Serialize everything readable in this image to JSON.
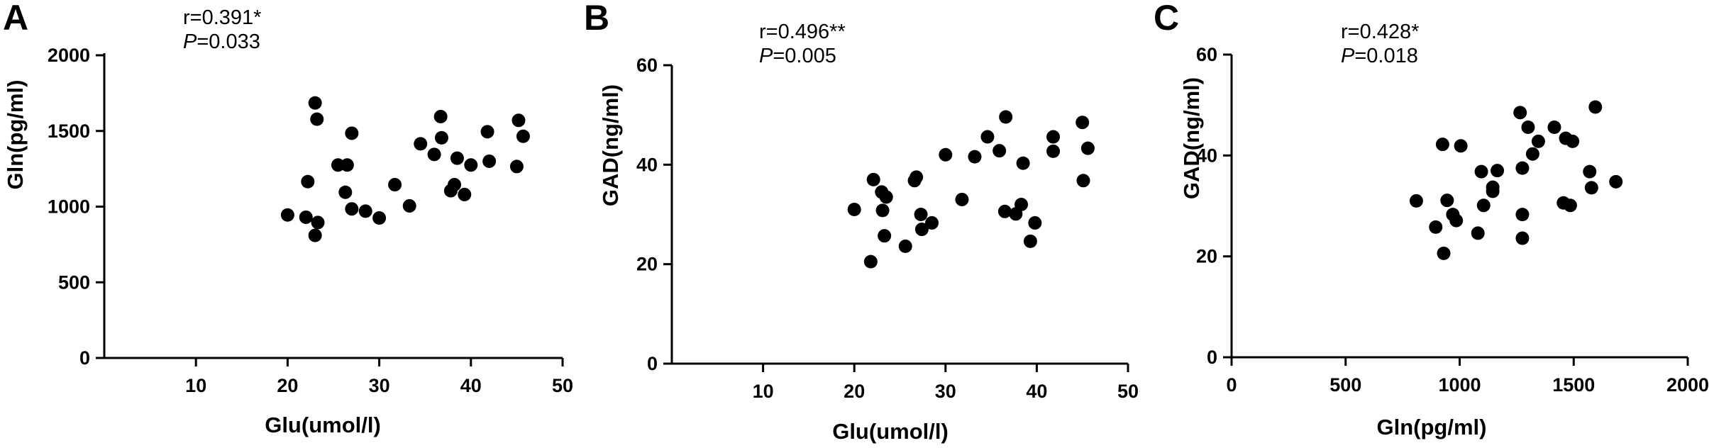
{
  "chart_data": [
    {
      "panel": "A",
      "type": "scatter",
      "annotation": {
        "r": "r=0.391*",
        "p_symbol": "P",
        "p_value": "=0.033"
      },
      "xlabel": "Glu(umol/l)",
      "ylabel": "Gln(pg/ml)",
      "xlim": [
        0,
        50
      ],
      "ylim": [
        0,
        2000
      ],
      "xticks": [
        10,
        20,
        30,
        40,
        50
      ],
      "yticks": [
        0,
        500,
        1000,
        1500,
        2000
      ],
      "marker_color": "#000000",
      "points": [
        [
          20,
          945
        ],
        [
          22,
          930
        ],
        [
          22.2,
          1165
        ],
        [
          23,
          810
        ],
        [
          23,
          1685
        ],
        [
          23.2,
          1578
        ],
        [
          23.3,
          895
        ],
        [
          25.5,
          1275
        ],
        [
          26.3,
          1095
        ],
        [
          26.5,
          1275
        ],
        [
          27,
          985
        ],
        [
          27,
          1485
        ],
        [
          28.5,
          970
        ],
        [
          30,
          925
        ],
        [
          31.7,
          1145
        ],
        [
          33.3,
          1005
        ],
        [
          34.5,
          1415
        ],
        [
          36,
          1345
        ],
        [
          36.7,
          1595
        ],
        [
          36.8,
          1455
        ],
        [
          37.8,
          1105
        ],
        [
          38.2,
          1145
        ],
        [
          38.5,
          1320
        ],
        [
          39.3,
          1080
        ],
        [
          40,
          1275
        ],
        [
          41.8,
          1495
        ],
        [
          42,
          1300
        ],
        [
          45,
          1265
        ],
        [
          45.2,
          1570
        ],
        [
          45.7,
          1465
        ]
      ]
    },
    {
      "panel": "B",
      "type": "scatter",
      "annotation": {
        "r": "r=0.496**",
        "p_symbol": "P",
        "p_value": "=0.005"
      },
      "xlabel": "Glu(umol/l)",
      "ylabel": "GAD(ng/ml)",
      "xlim": [
        0,
        50
      ],
      "ylim": [
        0,
        60
      ],
      "xticks": [
        10,
        20,
        30,
        40,
        50
      ],
      "yticks": [
        0,
        20,
        40,
        60
      ],
      "marker_color": "#000000",
      "points": [
        [
          20,
          31
        ],
        [
          21.8,
          20.5
        ],
        [
          22.1,
          37
        ],
        [
          23,
          34.5
        ],
        [
          23.1,
          30.8
        ],
        [
          23.3,
          25.7
        ],
        [
          23.5,
          33.5
        ],
        [
          25.6,
          23.6
        ],
        [
          26.6,
          36.8
        ],
        [
          26.8,
          37.5
        ],
        [
          27.3,
          30
        ],
        [
          27.4,
          27
        ],
        [
          28.5,
          28.3
        ],
        [
          30,
          42
        ],
        [
          31.8,
          33
        ],
        [
          33.2,
          41.6
        ],
        [
          34.6,
          45.6
        ],
        [
          35.9,
          42.8
        ],
        [
          36.5,
          30.6
        ],
        [
          36.6,
          49.6
        ],
        [
          37.7,
          30.1
        ],
        [
          38.3,
          32
        ],
        [
          38.5,
          40.3
        ],
        [
          39.3,
          24.6
        ],
        [
          39.8,
          28.3
        ],
        [
          41.8,
          45.6
        ],
        [
          41.8,
          42.7
        ],
        [
          45,
          48.5
        ],
        [
          45.1,
          36.8
        ],
        [
          45.6,
          43.3
        ]
      ]
    },
    {
      "panel": "C",
      "type": "scatter",
      "annotation": {
        "r": "r=0.428*",
        "p_symbol": "P",
        "p_value": "=0.018"
      },
      "xlabel": "Gln(pg/ml)",
      "ylabel": "GAD(ng/ml)",
      "xlim": [
        0,
        2000
      ],
      "ylim": [
        0,
        60
      ],
      "xticks": [
        0,
        500,
        1000,
        1500,
        2000
      ],
      "yticks": [
        0,
        20,
        40,
        60
      ],
      "marker_color": "#000000",
      "points": [
        [
          810,
          31
        ],
        [
          895,
          25.8
        ],
        [
          925,
          42.2
        ],
        [
          930,
          20.6
        ],
        [
          945,
          31.1
        ],
        [
          970,
          28.3
        ],
        [
          985,
          27.1
        ],
        [
          1005,
          41.9
        ],
        [
          1080,
          24.6
        ],
        [
          1095,
          36.8
        ],
        [
          1105,
          30.1
        ],
        [
          1145,
          32.9
        ],
        [
          1145,
          33.7
        ],
        [
          1165,
          37
        ],
        [
          1265,
          48.5
        ],
        [
          1275,
          23.6
        ],
        [
          1275,
          28.3
        ],
        [
          1275,
          37.5
        ],
        [
          1300,
          45.6
        ],
        [
          1320,
          40.3
        ],
        [
          1345,
          42.8
        ],
        [
          1415,
          45.6
        ],
        [
          1455,
          30.6
        ],
        [
          1465,
          43.4
        ],
        [
          1485,
          30.1
        ],
        [
          1495,
          42.8
        ],
        [
          1570,
          36.8
        ],
        [
          1578,
          33.6
        ],
        [
          1595,
          49.6
        ],
        [
          1685,
          34.8
        ]
      ]
    }
  ]
}
